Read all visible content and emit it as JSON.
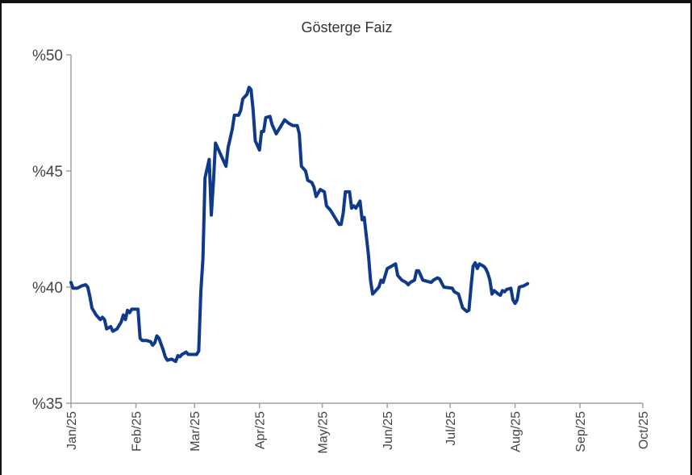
{
  "chart_data": {
    "type": "line",
    "title": "Gösterge Faiz",
    "xlabel": "",
    "ylabel": "",
    "ylim": [
      35,
      50
    ],
    "yticks": [
      {
        "value": 35,
        "label": "%35"
      },
      {
        "value": 40,
        "label": "%40"
      },
      {
        "value": 45,
        "label": "%45"
      },
      {
        "value": 50,
        "label": "%50"
      }
    ],
    "xticks": [
      {
        "value": "2025-01-01",
        "label": "Jan/25"
      },
      {
        "value": "2025-02-01",
        "label": "Feb/25"
      },
      {
        "value": "2025-03-01",
        "label": "Mar/25"
      },
      {
        "value": "2025-04-01",
        "label": "Apr/25"
      },
      {
        "value": "2025-05-01",
        "label": "May/25"
      },
      {
        "value": "2025-06-01",
        "label": "Jun/25"
      },
      {
        "value": "2025-07-01",
        "label": "Jul/25"
      },
      {
        "value": "2025-08-01",
        "label": "Aug/25"
      },
      {
        "value": "2025-09-01",
        "label": "Sep/25"
      },
      {
        "value": "2025-10-01",
        "label": "Oct/25"
      }
    ],
    "grid": false,
    "series": [
      {
        "color": "#0f3a8a",
        "points": [
          [
            "2025-01-01",
            40.2
          ],
          [
            "2025-01-02",
            39.95
          ],
          [
            "2025-01-03",
            39.95
          ],
          [
            "2025-01-04",
            39.95
          ],
          [
            "2025-01-06",
            40.05
          ],
          [
            "2025-01-08",
            40.1
          ],
          [
            "2025-01-09",
            40.0
          ],
          [
            "2025-01-10",
            39.6
          ],
          [
            "2025-01-11",
            39.1
          ],
          [
            "2025-01-13",
            38.8
          ],
          [
            "2025-01-15",
            38.6
          ],
          [
            "2025-01-16",
            38.7
          ],
          [
            "2025-01-17",
            38.6
          ],
          [
            "2025-01-18",
            38.2
          ],
          [
            "2025-01-20",
            38.3
          ],
          [
            "2025-01-21",
            38.1
          ],
          [
            "2025-01-23",
            38.2
          ],
          [
            "2025-01-25",
            38.5
          ],
          [
            "2025-01-26",
            38.8
          ],
          [
            "2025-01-27",
            38.6
          ],
          [
            "2025-01-28",
            39.0
          ],
          [
            "2025-01-29",
            38.9
          ],
          [
            "2025-01-30",
            39.05
          ],
          [
            "2025-02-02",
            39.05
          ],
          [
            "2025-02-03",
            37.8
          ],
          [
            "2025-02-04",
            37.7
          ],
          [
            "2025-02-06",
            37.7
          ],
          [
            "2025-02-08",
            37.65
          ],
          [
            "2025-02-09",
            37.5
          ],
          [
            "2025-02-10",
            37.6
          ],
          [
            "2025-02-11",
            37.9
          ],
          [
            "2025-02-12",
            37.8
          ],
          [
            "2025-02-14",
            37.3
          ],
          [
            "2025-02-15",
            37.0
          ],
          [
            "2025-02-16",
            36.85
          ],
          [
            "2025-02-18",
            36.9
          ],
          [
            "2025-02-20",
            36.8
          ],
          [
            "2025-02-21",
            37.05
          ],
          [
            "2025-02-22",
            37.0
          ],
          [
            "2025-02-23",
            37.1
          ],
          [
            "2025-02-25",
            37.2
          ],
          [
            "2025-02-26",
            37.1
          ],
          [
            "2025-02-28",
            37.1
          ],
          [
            "2025-03-02",
            37.1
          ],
          [
            "2025-03-03",
            37.25
          ],
          [
            "2025-03-04",
            39.8
          ],
          [
            "2025-03-05",
            41.2
          ],
          [
            "2025-03-06",
            44.7
          ],
          [
            "2025-03-08",
            45.5
          ],
          [
            "2025-03-09",
            43.1
          ],
          [
            "2025-03-10",
            44.5
          ],
          [
            "2025-03-11",
            46.2
          ],
          [
            "2025-03-14",
            45.6
          ],
          [
            "2025-03-16",
            45.2
          ],
          [
            "2025-03-17",
            46.0
          ],
          [
            "2025-03-19",
            46.8
          ],
          [
            "2025-03-20",
            47.4
          ],
          [
            "2025-03-22",
            47.4
          ],
          [
            "2025-03-23",
            47.6
          ],
          [
            "2025-03-24",
            48.1
          ],
          [
            "2025-03-26",
            48.3
          ],
          [
            "2025-03-27",
            48.6
          ],
          [
            "2025-03-28",
            48.5
          ],
          [
            "2025-03-29",
            47.6
          ],
          [
            "2025-03-30",
            46.3
          ],
          [
            "2025-04-01",
            45.9
          ],
          [
            "2025-04-02",
            46.7
          ],
          [
            "2025-04-03",
            46.7
          ],
          [
            "2025-04-04",
            47.3
          ],
          [
            "2025-04-06",
            47.35
          ],
          [
            "2025-04-07",
            47.0
          ],
          [
            "2025-04-09",
            46.6
          ],
          [
            "2025-04-11",
            46.9
          ],
          [
            "2025-04-13",
            47.2
          ],
          [
            "2025-04-15",
            47.05
          ],
          [
            "2025-04-17",
            46.95
          ],
          [
            "2025-04-19",
            46.95
          ],
          [
            "2025-04-20",
            46.6
          ],
          [
            "2025-04-21",
            45.2
          ],
          [
            "2025-04-23",
            45.0
          ],
          [
            "2025-04-24",
            44.6
          ],
          [
            "2025-04-26",
            44.5
          ],
          [
            "2025-04-27",
            44.3
          ],
          [
            "2025-04-28",
            43.9
          ],
          [
            "2025-04-30",
            44.2
          ],
          [
            "2025-05-02",
            44.1
          ],
          [
            "2025-05-03",
            43.5
          ],
          [
            "2025-05-05",
            43.3
          ],
          [
            "2025-05-07",
            43.0
          ],
          [
            "2025-05-09",
            42.7
          ],
          [
            "2025-05-10",
            42.7
          ],
          [
            "2025-05-11",
            43.2
          ],
          [
            "2025-05-12",
            44.1
          ],
          [
            "2025-05-14",
            44.1
          ],
          [
            "2025-05-15",
            43.4
          ],
          [
            "2025-05-16",
            43.5
          ],
          [
            "2025-05-17",
            43.4
          ],
          [
            "2025-05-19",
            43.7
          ],
          [
            "2025-05-20",
            42.9
          ],
          [
            "2025-05-21",
            43.0
          ],
          [
            "2025-05-23",
            41.4
          ],
          [
            "2025-05-24",
            40.3
          ],
          [
            "2025-05-25",
            39.7
          ],
          [
            "2025-05-26",
            39.8
          ],
          [
            "2025-05-28",
            40.0
          ],
          [
            "2025-05-29",
            40.3
          ],
          [
            "2025-05-30",
            40.2
          ],
          [
            "2025-06-01",
            40.8
          ],
          [
            "2025-06-03",
            40.9
          ],
          [
            "2025-06-05",
            41.0
          ],
          [
            "2025-06-06",
            40.5
          ],
          [
            "2025-06-08",
            40.3
          ],
          [
            "2025-06-10",
            40.2
          ],
          [
            "2025-06-11",
            40.1
          ],
          [
            "2025-06-12",
            40.2
          ],
          [
            "2025-06-14",
            40.3
          ],
          [
            "2025-06-15",
            40.7
          ],
          [
            "2025-06-16",
            40.7
          ],
          [
            "2025-06-18",
            40.3
          ],
          [
            "2025-06-20",
            40.25
          ],
          [
            "2025-06-22",
            40.2
          ],
          [
            "2025-06-23",
            40.3
          ],
          [
            "2025-06-25",
            40.4
          ],
          [
            "2025-06-26",
            40.35
          ],
          [
            "2025-06-28",
            40.0
          ],
          [
            "2025-07-02",
            39.95
          ],
          [
            "2025-07-03",
            39.8
          ],
          [
            "2025-07-05",
            39.7
          ],
          [
            "2025-07-07",
            39.1
          ],
          [
            "2025-07-09",
            38.95
          ],
          [
            "2025-07-10",
            39.0
          ],
          [
            "2025-07-11",
            40.0
          ],
          [
            "2025-07-12",
            40.9
          ],
          [
            "2025-07-13",
            41.05
          ],
          [
            "2025-07-14",
            40.8
          ],
          [
            "2025-07-15",
            41.0
          ],
          [
            "2025-07-17",
            40.9
          ],
          [
            "2025-07-18",
            40.8
          ],
          [
            "2025-07-19",
            40.6
          ],
          [
            "2025-07-20",
            40.3
          ],
          [
            "2025-07-21",
            39.7
          ],
          [
            "2025-07-22",
            39.85
          ],
          [
            "2025-07-24",
            39.7
          ],
          [
            "2025-07-25",
            39.65
          ],
          [
            "2025-07-26",
            39.85
          ],
          [
            "2025-07-27",
            39.8
          ],
          [
            "2025-07-28",
            39.9
          ],
          [
            "2025-07-30",
            39.95
          ],
          [
            "2025-07-31",
            39.45
          ],
          [
            "2025-08-01",
            39.3
          ],
          [
            "2025-08-02",
            39.45
          ],
          [
            "2025-08-03",
            40.0
          ],
          [
            "2025-08-05",
            40.05
          ],
          [
            "2025-08-07",
            40.15
          ]
        ]
      }
    ]
  }
}
